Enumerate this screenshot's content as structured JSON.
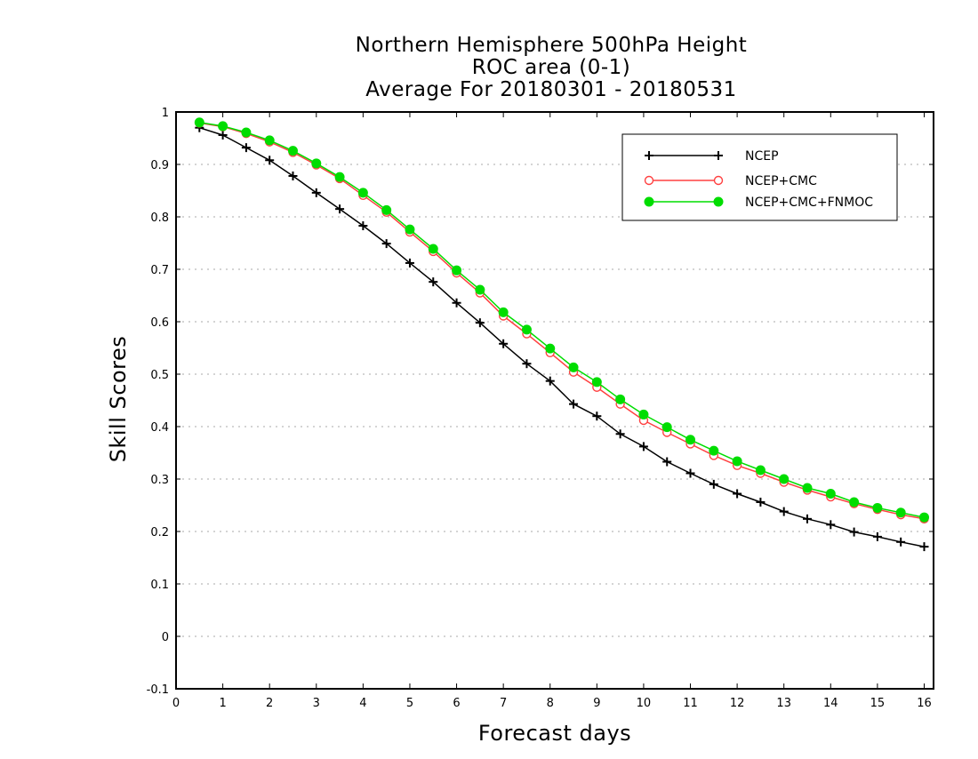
{
  "chart_data": {
    "type": "line",
    "title": [
      "Northern Hemisphere 500hPa Height",
      "ROC area (0-1)",
      "Average For 20180301 - 20180531"
    ],
    "xlabel": "Forecast days",
    "ylabel": "Skill Scores",
    "xlim": [
      0,
      16.2
    ],
    "ylim": [
      -0.1,
      1.0
    ],
    "xticks": [
      "0",
      "1",
      "2",
      "3",
      "4",
      "5",
      "6",
      "7",
      "8",
      "9",
      "10",
      "11",
      "12",
      "13",
      "14",
      "15",
      "16"
    ],
    "yticks": [
      "-0.1",
      "0",
      "0.1",
      "0.2",
      "0.3",
      "0.4",
      "0.5",
      "0.6",
      "0.7",
      "0.8",
      "0.9",
      "1"
    ],
    "grid": true,
    "legend_position": "top-right",
    "x": [
      0.5,
      1.0,
      1.5,
      2.0,
      2.5,
      3.0,
      3.5,
      4.0,
      4.5,
      5.0,
      5.5,
      6.0,
      6.5,
      7.0,
      7.5,
      8.0,
      8.5,
      9.0,
      9.5,
      10.0,
      10.5,
      11.0,
      11.5,
      12.0,
      12.5,
      13.0,
      13.5,
      14.0,
      14.5,
      15.0,
      15.5,
      16.0
    ],
    "series": [
      {
        "name": "NCEP",
        "color": "#000000",
        "marker": "plus",
        "values": [
          0.97,
          0.956,
          0.932,
          0.908,
          0.878,
          0.846,
          0.815,
          0.783,
          0.749,
          0.712,
          0.676,
          0.636,
          0.598,
          0.558,
          0.52,
          0.487,
          0.443,
          0.42,
          0.386,
          0.362,
          0.333,
          0.311,
          0.29,
          0.272,
          0.256,
          0.238,
          0.224,
          0.213,
          0.199,
          0.19,
          0.18,
          0.171
        ]
      },
      {
        "name": "NCEP+CMC",
        "color": "#ff4040",
        "marker": "open-circle",
        "values": [
          0.979,
          0.972,
          0.959,
          0.943,
          0.923,
          0.899,
          0.873,
          0.841,
          0.809,
          0.771,
          0.734,
          0.693,
          0.655,
          0.611,
          0.577,
          0.541,
          0.504,
          0.475,
          0.443,
          0.412,
          0.389,
          0.367,
          0.345,
          0.326,
          0.311,
          0.294,
          0.279,
          0.266,
          0.253,
          0.242,
          0.232,
          0.224
        ]
      },
      {
        "name": "NCEP+CMC+FNMOC",
        "color": "#00dd00",
        "marker": "filled-circle",
        "values": [
          0.98,
          0.973,
          0.961,
          0.946,
          0.926,
          0.902,
          0.876,
          0.846,
          0.813,
          0.776,
          0.739,
          0.698,
          0.661,
          0.618,
          0.585,
          0.549,
          0.513,
          0.485,
          0.452,
          0.423,
          0.399,
          0.375,
          0.354,
          0.334,
          0.317,
          0.3,
          0.283,
          0.272,
          0.256,
          0.245,
          0.236,
          0.227
        ]
      }
    ]
  }
}
